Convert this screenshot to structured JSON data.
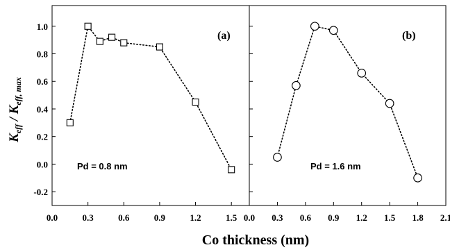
{
  "chart_data": [
    {
      "type": "scatter",
      "panel_label": "(a)",
      "annotation": "Pd = 0.8 nm",
      "marker": "square",
      "line_style": "dotted",
      "xlim": [
        0.0,
        1.65
      ],
      "ylim": [
        -0.3,
        1.15
      ],
      "xticks": [
        0.0,
        0.3,
        0.6,
        0.9,
        1.2,
        1.5
      ],
      "xtick_labels": [
        "0.0",
        "0.3",
        "0.6",
        "0.9",
        "1.2",
        "1.5"
      ],
      "series": [
        {
          "x": [
            0.15,
            0.3,
            0.4,
            0.5,
            0.6,
            0.9,
            1.2,
            1.5
          ],
          "y": [
            0.3,
            1.0,
            0.89,
            0.92,
            0.88,
            0.85,
            0.45,
            -0.04
          ]
        }
      ]
    },
    {
      "type": "scatter",
      "panel_label": "(b)",
      "annotation": "Pd = 1.6 nm",
      "marker": "circle",
      "line_style": "dotted",
      "xlim": [
        0.0,
        2.1
      ],
      "ylim": [
        -0.3,
        1.15
      ],
      "xticks": [
        0.0,
        0.3,
        0.6,
        0.9,
        1.2,
        1.5,
        1.8,
        2.1
      ],
      "xtick_labels": [
        "0.0",
        "0.3",
        "0.6",
        "0.9",
        "1.2",
        "1.5",
        "1.8",
        "2.1"
      ],
      "series": [
        {
          "x": [
            0.3,
            0.5,
            0.7,
            0.9,
            1.2,
            1.5,
            1.8
          ],
          "y": [
            0.05,
            0.57,
            1.0,
            0.97,
            0.66,
            0.44,
            -0.1
          ]
        }
      ]
    }
  ],
  "shared": {
    "xlabel": "Co thickness (nm)",
    "ylabel_main": "K",
    "ylabel_sub1": "eff",
    "ylabel_sep": " / ",
    "ylabel_main2": "K",
    "ylabel_sub2": "eff, max",
    "yticks": [
      1.0,
      0.8,
      0.6,
      0.4,
      0.2,
      0.0,
      -0.2
    ],
    "ytick_labels": [
      "1.0",
      "0.8",
      "0.6",
      "0.4",
      "0.2",
      "0.0",
      "-0.2"
    ],
    "grid": false
  }
}
